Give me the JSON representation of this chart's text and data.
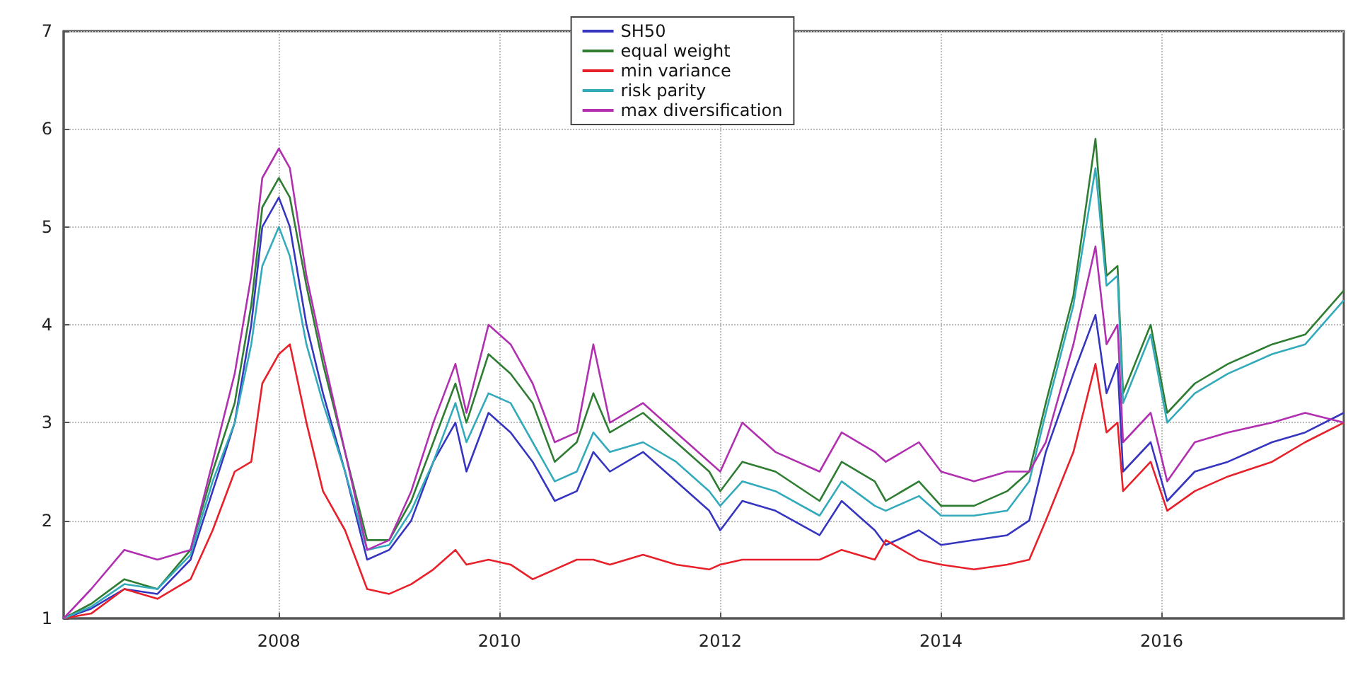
{
  "chart_data": {
    "type": "line",
    "x": [
      2006.05,
      2006.3,
      2006.6,
      2006.9,
      2007.2,
      2007.4,
      2007.6,
      2007.75,
      2007.85,
      2008.0,
      2008.1,
      2008.25,
      2008.4,
      2008.6,
      2008.8,
      2009.0,
      2009.2,
      2009.4,
      2009.6,
      2009.7,
      2009.9,
      2010.1,
      2010.3,
      2010.5,
      2010.7,
      2010.85,
      2011.0,
      2011.3,
      2011.6,
      2011.9,
      2012.0,
      2012.2,
      2012.5,
      2012.9,
      2013.1,
      2013.4,
      2013.5,
      2013.8,
      2014.0,
      2014.3,
      2014.6,
      2014.8,
      2014.95,
      2015.2,
      2015.4,
      2015.5,
      2015.6,
      2015.65,
      2015.9,
      2016.05,
      2016.3,
      2016.6,
      2017.0,
      2017.3,
      2017.65
    ],
    "series": [
      {
        "name": "SH50",
        "color": "#3535c0",
        "values": [
          1.0,
          1.1,
          1.3,
          1.25,
          1.6,
          2.3,
          3.0,
          4.0,
          5.0,
          5.3,
          5.0,
          4.0,
          3.3,
          2.5,
          1.6,
          1.7,
          2.0,
          2.6,
          3.0,
          2.5,
          3.1,
          2.9,
          2.6,
          2.2,
          2.3,
          2.7,
          2.5,
          2.7,
          2.4,
          2.1,
          1.9,
          2.2,
          2.1,
          1.85,
          2.2,
          1.9,
          1.75,
          1.9,
          1.75,
          1.8,
          1.85,
          2.0,
          2.7,
          3.5,
          4.1,
          3.3,
          3.6,
          2.5,
          2.8,
          2.2,
          2.5,
          2.6,
          2.8,
          2.9,
          3.1
        ]
      },
      {
        "name": "equal weight",
        "color": "#2e7d32",
        "values": [
          1.0,
          1.15,
          1.4,
          1.3,
          1.7,
          2.5,
          3.2,
          4.2,
          5.2,
          5.5,
          5.3,
          4.4,
          3.6,
          2.7,
          1.8,
          1.8,
          2.2,
          2.8,
          3.4,
          3.0,
          3.7,
          3.5,
          3.2,
          2.6,
          2.8,
          3.3,
          2.9,
          3.1,
          2.8,
          2.5,
          2.3,
          2.6,
          2.5,
          2.2,
          2.6,
          2.4,
          2.2,
          2.4,
          2.15,
          2.15,
          2.3,
          2.5,
          3.2,
          4.3,
          5.9,
          4.5,
          4.6,
          3.3,
          4.0,
          3.1,
          3.4,
          3.6,
          3.8,
          3.9,
          4.35
        ]
      },
      {
        "name": "min variance",
        "color": "#e8202a",
        "values": [
          1.0,
          1.05,
          1.3,
          1.2,
          1.4,
          1.9,
          2.5,
          2.6,
          3.4,
          3.7,
          3.8,
          3.0,
          2.3,
          1.9,
          1.3,
          1.25,
          1.35,
          1.5,
          1.7,
          1.55,
          1.6,
          1.55,
          1.4,
          1.5,
          1.6,
          1.6,
          1.55,
          1.65,
          1.55,
          1.5,
          1.55,
          1.6,
          1.6,
          1.6,
          1.7,
          1.6,
          1.8,
          1.6,
          1.55,
          1.5,
          1.55,
          1.6,
          2.0,
          2.7,
          3.6,
          2.9,
          3.0,
          2.3,
          2.6,
          2.1,
          2.3,
          2.45,
          2.6,
          2.8,
          3.0
        ]
      },
      {
        "name": "risk parity",
        "color": "#33aabb",
        "values": [
          1.0,
          1.12,
          1.35,
          1.3,
          1.65,
          2.4,
          3.0,
          3.8,
          4.6,
          5.0,
          4.7,
          3.8,
          3.2,
          2.5,
          1.7,
          1.75,
          2.1,
          2.6,
          3.2,
          2.8,
          3.3,
          3.2,
          2.8,
          2.4,
          2.5,
          2.9,
          2.7,
          2.8,
          2.6,
          2.3,
          2.15,
          2.4,
          2.3,
          2.05,
          2.4,
          2.15,
          2.1,
          2.25,
          2.05,
          2.05,
          2.1,
          2.4,
          3.1,
          4.2,
          5.6,
          4.4,
          4.5,
          3.2,
          3.9,
          3.0,
          3.3,
          3.5,
          3.7,
          3.8,
          4.25
        ]
      },
      {
        "name": "max diversification",
        "color": "#b030b0",
        "values": [
          1.0,
          1.3,
          1.7,
          1.6,
          1.7,
          2.6,
          3.5,
          4.5,
          5.5,
          5.8,
          5.6,
          4.5,
          3.7,
          2.7,
          1.7,
          1.8,
          2.3,
          3.0,
          3.6,
          3.1,
          4.0,
          3.8,
          3.4,
          2.8,
          2.9,
          3.8,
          3.0,
          3.2,
          2.9,
          2.6,
          2.5,
          3.0,
          2.7,
          2.5,
          2.9,
          2.7,
          2.6,
          2.8,
          2.5,
          2.4,
          2.5,
          2.5,
          2.8,
          3.8,
          4.8,
          3.8,
          4.0,
          2.8,
          3.1,
          2.4,
          2.8,
          2.9,
          3.0,
          3.1,
          3.0
        ]
      }
    ],
    "xlim": [
      2006.05,
      2017.65
    ],
    "xticks": [
      2008,
      2010,
      2012,
      2014,
      2016
    ],
    "ylim": [
      1,
      7
    ],
    "yticks": [
      1,
      2,
      3,
      4,
      5,
      6,
      7
    ],
    "grid": true,
    "legend": "top",
    "marker": "none",
    "line_style": "solid"
  }
}
